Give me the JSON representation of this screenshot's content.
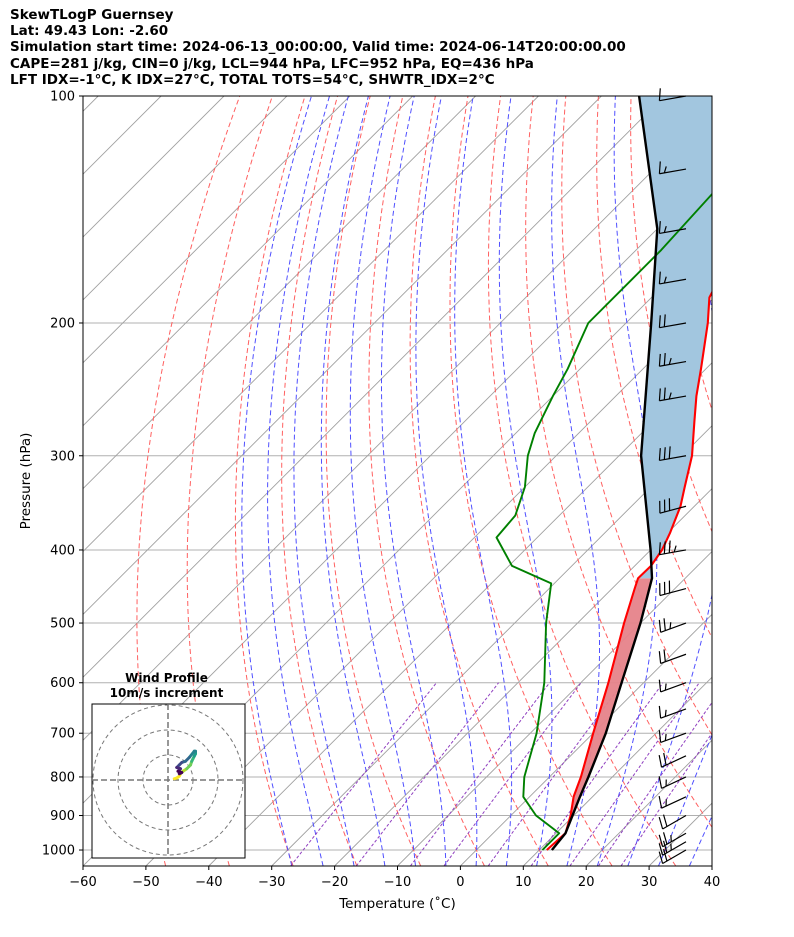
{
  "header": {
    "lines": [
      "SkewTLogP Guernsey",
      "Lat: 49.43   Lon: -2.60",
      "Simulation start time: 2024-06-13_00:00:00, Valid time: 2024-06-14T20:00:00.00",
      "CAPE=281 j/kg, CIN=0 j/kg, LCL=944 hPa, LFC=952 hPa, EQ=436 hPa",
      "LFT IDX=-1°C, K IDX=27°C, TOTAL TOTS=54°C, SHWTR_IDX=2°C"
    ]
  },
  "chart_data": {
    "type": "skew-t log-p",
    "xlabel": "Temperature (˚C)",
    "ylabel": "Pressure (hPa)",
    "xlim": [
      -60,
      40
    ],
    "ylim": [
      1050,
      100
    ],
    "xticks": [
      -60,
      -50,
      -40,
      -30,
      -20,
      -10,
      0,
      10,
      20,
      30,
      40
    ],
    "xtick_labels": [
      "−60",
      "−50",
      "−40",
      "−30",
      "−20",
      "−10",
      "0",
      "10",
      "20",
      "30",
      "40"
    ],
    "yticks": [
      1000,
      900,
      800,
      700,
      600,
      500,
      400,
      300,
      200,
      100
    ],
    "ytick_labels": [
      "1000",
      "900",
      "800",
      "700",
      "600",
      "500",
      "400",
      "300",
      "200",
      "100"
    ],
    "temperature": [
      [
        1000,
        11.2
      ],
      [
        950,
        11.5
      ],
      [
        900,
        9.5
      ],
      [
        850,
        7.0
      ],
      [
        800,
        5.0
      ],
      [
        700,
        0.0
      ],
      [
        600,
        -5.6
      ],
      [
        500,
        -12.6
      ],
      [
        450,
        -16.4
      ],
      [
        436,
        -17.5
      ],
      [
        420,
        -17.4
      ],
      [
        400,
        -18.2
      ],
      [
        380,
        -19.6
      ],
      [
        350,
        -22.2
      ],
      [
        330,
        -24.6
      ],
      [
        300,
        -28.4
      ],
      [
        270,
        -33.5
      ],
      [
        250,
        -37.2
      ],
      [
        230,
        -40.8
      ],
      [
        200,
        -47.0
      ],
      [
        185,
        -50.8
      ],
      [
        160,
        -54.4
      ],
      [
        130,
        -60.0
      ],
      [
        110,
        -63.8
      ],
      [
        100,
        -66.0
      ]
    ],
    "dewpoint": [
      [
        1000,
        10.5
      ],
      [
        950,
        10.5
      ],
      [
        900,
        4.0
      ],
      [
        850,
        -1.0
      ],
      [
        800,
        -4.0
      ],
      [
        700,
        -9.0
      ],
      [
        600,
        -15.8
      ],
      [
        500,
        -25.0
      ],
      [
        443,
        -30.5
      ],
      [
        420,
        -39.5
      ],
      [
        385,
        -46.5
      ],
      [
        360,
        -47.0
      ],
      [
        330,
        -50.0
      ],
      [
        300,
        -54.5
      ],
      [
        280,
        -57.0
      ],
      [
        250,
        -60.0
      ],
      [
        230,
        -62.0
      ],
      [
        200,
        -66.0
      ],
      [
        175,
        -66.0
      ],
      [
        160,
        -66.0
      ],
      [
        130,
        -67.0
      ],
      [
        100,
        -68.0
      ]
    ],
    "parcel": [
      [
        1000,
        12.0
      ],
      [
        950,
        11.5
      ],
      [
        900,
        9.8
      ],
      [
        850,
        8.0
      ],
      [
        800,
        6.2
      ],
      [
        700,
        2.0
      ],
      [
        600,
        -3.5
      ],
      [
        500,
        -10.0
      ],
      [
        436,
        -15.3
      ],
      [
        400,
        -20.0
      ],
      [
        300,
        -36.5
      ],
      [
        200,
        -56.0
      ],
      [
        150,
        -70.0
      ],
      [
        100,
        -94.0
      ]
    ],
    "shading": {
      "cape_color": "#e6838a",
      "upper_color": "#a2c6df"
    },
    "colors": {
      "temperature": "#ff0000",
      "dewpoint": "#008000",
      "parcel": "#000000",
      "dry_adiabat": "#ff6060",
      "moist_adiabat": "#5050ff",
      "mixing_ratio": "#9040c0",
      "isotherm": "#a0a0a0"
    },
    "wind_barbs": [
      {
        "p": 1000,
        "speed": 20,
        "dir": 240
      },
      {
        "p": 975,
        "speed": 25,
        "dir": 240
      },
      {
        "p": 950,
        "speed": 25,
        "dir": 240
      },
      {
        "p": 900,
        "speed": 20,
        "dir": 240
      },
      {
        "p": 850,
        "speed": 15,
        "dir": 245
      },
      {
        "p": 800,
        "speed": 15,
        "dir": 245
      },
      {
        "p": 750,
        "speed": 20,
        "dir": 245
      },
      {
        "p": 700,
        "speed": 15,
        "dir": 250
      },
      {
        "p": 650,
        "speed": 15,
        "dir": 250
      },
      {
        "p": 600,
        "speed": 15,
        "dir": 250
      },
      {
        "p": 550,
        "speed": 20,
        "dir": 250
      },
      {
        "p": 500,
        "speed": 25,
        "dir": 250
      },
      {
        "p": 450,
        "speed": 30,
        "dir": 255
      },
      {
        "p": 400,
        "speed": 35,
        "dir": 260
      },
      {
        "p": 350,
        "speed": 30,
        "dir": 255
      },
      {
        "p": 300,
        "speed": 30,
        "dir": 260
      },
      {
        "p": 250,
        "speed": 25,
        "dir": 260
      },
      {
        "p": 225,
        "speed": 25,
        "dir": 260
      },
      {
        "p": 200,
        "speed": 20,
        "dir": 260
      },
      {
        "p": 175,
        "speed": 15,
        "dir": 260
      },
      {
        "p": 150,
        "speed": 15,
        "dir": 260
      },
      {
        "p": 125,
        "speed": 15,
        "dir": 260
      },
      {
        "p": 100,
        "speed": 10,
        "dir": 260
      }
    ],
    "hodograph": {
      "title": "Wind Profile",
      "subtitle": "10m/s increment",
      "u": [
        2.5,
        3.5,
        4.5,
        5.0,
        6.0,
        7.5,
        9.0,
        9.5,
        10.0,
        10.5,
        11.0,
        11.0,
        10.5,
        8.5,
        7.0,
        5.5,
        4.5,
        3.5,
        5.0,
        4.0,
        5.5,
        4.5
      ],
      "v": [
        0.5,
        0.8,
        1.5,
        2.5,
        3.5,
        4.5,
        6.0,
        7.5,
        8.5,
        9.5,
        10.5,
        11.5,
        11.5,
        9.0,
        7.5,
        7.0,
        6.0,
        5.0,
        4.5,
        3.5,
        3.0,
        2.5
      ],
      "colormap": [
        "#fde725",
        "#b5de2b",
        "#6ece58",
        "#35b779",
        "#1f9e89",
        "#26828e",
        "#31688e",
        "#3e4989",
        "#482878",
        "#440154"
      ]
    }
  }
}
